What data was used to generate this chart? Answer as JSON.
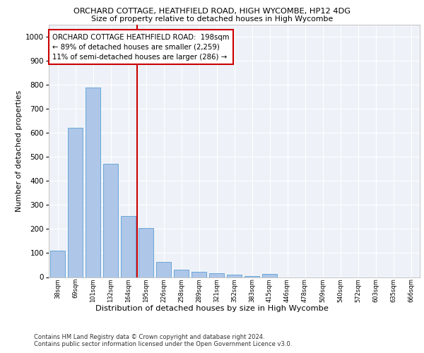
{
  "title1": "ORCHARD COTTAGE, HEATHFIELD ROAD, HIGH WYCOMBE, HP12 4DG",
  "title2": "Size of property relative to detached houses in High Wycombe",
  "xlabel": "Distribution of detached houses by size in High Wycombe",
  "ylabel": "Number of detached properties",
  "footer1": "Contains HM Land Registry data © Crown copyright and database right 2024.",
  "footer2": "Contains public sector information licensed under the Open Government Licence v3.0.",
  "categories": [
    "38sqm",
    "69sqm",
    "101sqm",
    "132sqm",
    "164sqm",
    "195sqm",
    "226sqm",
    "258sqm",
    "289sqm",
    "321sqm",
    "352sqm",
    "383sqm",
    "415sqm",
    "446sqm",
    "478sqm",
    "509sqm",
    "540sqm",
    "572sqm",
    "603sqm",
    "635sqm",
    "666sqm"
  ],
  "values": [
    110,
    620,
    790,
    470,
    255,
    205,
    63,
    30,
    22,
    15,
    10,
    5,
    12,
    0,
    0,
    0,
    0,
    0,
    0,
    0,
    0
  ],
  "bar_color": "#aec6e8",
  "bar_edge_color": "#5a9fd4",
  "highlight_index": 5,
  "highlight_line_color": "#cc0000",
  "ylim": [
    0,
    1050
  ],
  "yticks": [
    0,
    100,
    200,
    300,
    400,
    500,
    600,
    700,
    800,
    900,
    1000
  ],
  "annotation_title": "ORCHARD COTTAGE HEATHFIELD ROAD:  198sqm",
  "annotation_line1": "← 89% of detached houses are smaller (2,259)",
  "annotation_line2": "11% of semi-detached houses are larger (286) →",
  "annotation_box_color": "#ffffff",
  "annotation_border_color": "#cc0000",
  "bg_color": "#eef2f8",
  "grid_color": "#ffffff"
}
